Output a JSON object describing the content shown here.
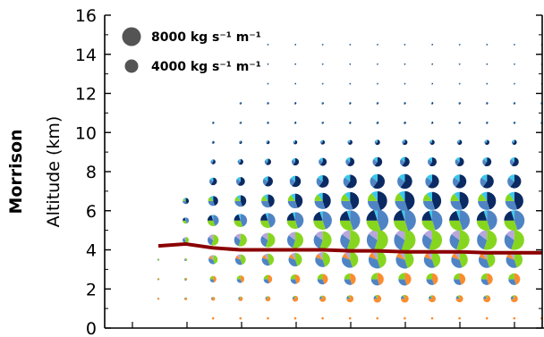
{
  "chart_data": {
    "type": "scatter",
    "row_label": "Morrison",
    "ylabel": "Altitude (km)",
    "ylim": [
      0,
      16
    ],
    "yticks": [
      0,
      2,
      4,
      6,
      8,
      10,
      12,
      14,
      16
    ],
    "legend": [
      {
        "label": "8000 kg s⁻¹ m⁻¹",
        "size_value": 8000
      },
      {
        "label": "4000 kg s⁻¹ m⁻¹",
        "size_value": 4000
      }
    ],
    "colors": {
      "navy": "#0b2a63",
      "blue": "#4f84c4",
      "cyan": "#39c9ec",
      "green": "#86d61f",
      "lavender": "#b8a6dc",
      "orange": "#fb8c2e",
      "line": "#8b0000",
      "legend_dot": "#545454"
    },
    "line_series": {
      "name": "",
      "points": [
        [
          0,
          4.2
        ],
        [
          1,
          4.3
        ],
        [
          2,
          4.1
        ],
        [
          3,
          4.0
        ],
        [
          4,
          4.0
        ],
        [
          5,
          4.0
        ],
        [
          6,
          4.0
        ],
        [
          7,
          3.95
        ],
        [
          8,
          3.95
        ],
        [
          9,
          3.9
        ],
        [
          10,
          3.9
        ],
        [
          11,
          3.9
        ],
        [
          12,
          3.85
        ],
        [
          13,
          3.85
        ],
        [
          14,
          3.85
        ]
      ]
    },
    "pie_grid": {
      "altitudes": [
        0.5,
        1.5,
        2.5,
        3.5,
        4.5,
        5.5,
        6.5,
        7.5,
        8.5,
        9.5,
        10.5,
        11.5,
        12.5,
        13.5,
        14.5
      ],
      "columns": 15
    }
  }
}
